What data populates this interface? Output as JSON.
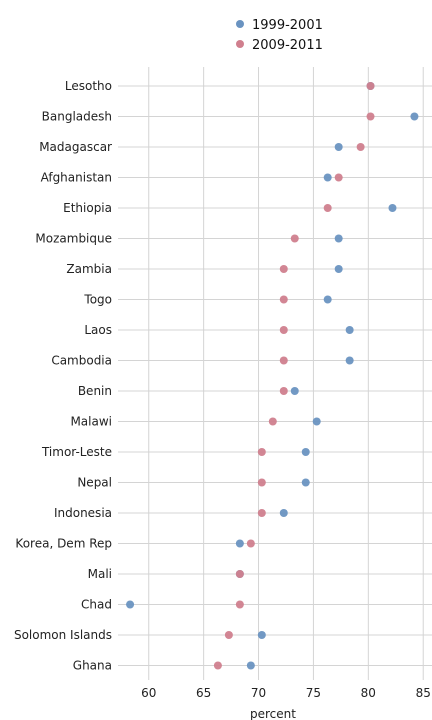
{
  "chart_data": {
    "type": "scatter",
    "title": "",
    "xlabel": "percent",
    "ylabel": "",
    "xlim": [
      57.2,
      85.8
    ],
    "xticks": [
      60,
      65,
      70,
      75,
      80,
      85
    ],
    "grid": true,
    "legend_position": "top",
    "categories": [
      "Lesotho",
      "Bangladesh",
      "Madagascar",
      "Afghanistan",
      "Ethiopia",
      "Mozambique",
      "Zambia",
      "Togo",
      "Laos",
      "Cambodia",
      "Benin",
      "Malawi",
      "Timor-Leste",
      "Nepal",
      "Indonesia",
      "Korea, Dem Rep",
      "Mali",
      "Chad",
      "Solomon Islands",
      "Ghana"
    ],
    "series": [
      {
        "name": "1999-2001",
        "color": "#6a93c1",
        "values": [
          80.2,
          84.2,
          77.3,
          76.3,
          82.2,
          77.3,
          77.3,
          76.3,
          78.3,
          78.3,
          73.3,
          75.3,
          74.3,
          74.3,
          72.3,
          68.3,
          68.3,
          58.3,
          70.3,
          69.3
        ]
      },
      {
        "name": "2009-2011",
        "color": "#d07f8e",
        "values": [
          80.2,
          80.2,
          79.3,
          77.3,
          76.3,
          73.3,
          72.3,
          72.3,
          72.3,
          72.3,
          72.3,
          71.3,
          70.3,
          70.3,
          70.3,
          69.3,
          68.3,
          68.3,
          67.3,
          66.3
        ]
      }
    ]
  }
}
